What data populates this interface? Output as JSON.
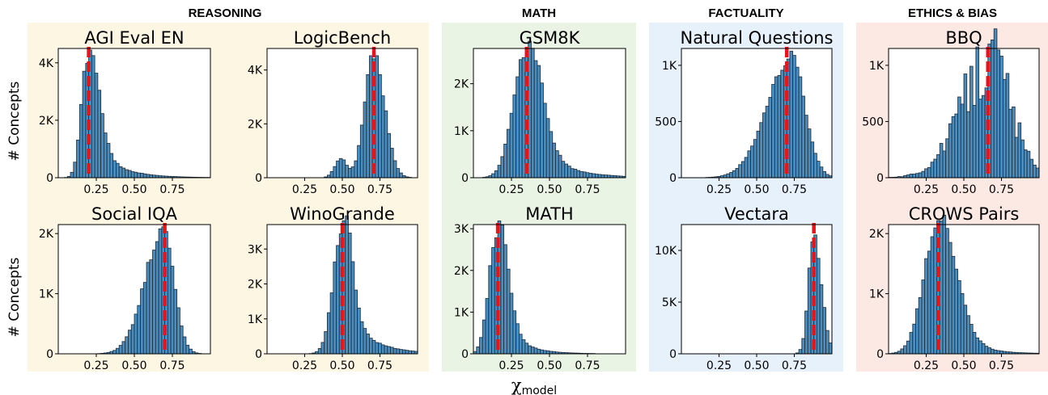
{
  "groups": [
    {
      "key": "reasoning",
      "title": "REASONING",
      "color": "#fdf6e3"
    },
    {
      "key": "math",
      "title": "MATH",
      "color": "#eaf4e4"
    },
    {
      "key": "factuality",
      "title": "FACTUALITY",
      "color": "#e6f1fb"
    },
    {
      "key": "ethics",
      "title": "ETHICS & BIAS",
      "color": "#fde9e4"
    }
  ],
  "ylabel": "# Concepts",
  "xlabel": {
    "symbol": "χ",
    "sub": "model"
  },
  "colors": {
    "bar": "#4a8dbf",
    "bar_edge": "#1b2a38",
    "mean_line": "#e8141a"
  },
  "chart_data": [
    {
      "type": "bar",
      "id": "agi",
      "group": "reasoning",
      "title": "AGI Eval EN",
      "xlim": [
        0,
        1
      ],
      "ylim": [
        0,
        4500
      ],
      "yticks": [
        0,
        2000,
        4000
      ],
      "yticklabels": [
        "0",
        "2K",
        "4K"
      ],
      "xticks": [
        0.25,
        0.5,
        0.75
      ],
      "xticklabels": [
        "0.25",
        "0.50",
        "0.75"
      ],
      "mean": 0.2,
      "dist": {
        "peak": 0.19,
        "left": 0.04,
        "right": 0.07,
        "max": 4100,
        "tail": 0.05,
        "tailscale": 0.35
      }
    },
    {
      "type": "bar",
      "id": "logic",
      "group": "reasoning",
      "title": "LogicBench",
      "xlim": [
        0,
        1
      ],
      "ylim": [
        0,
        4800
      ],
      "yticks": [
        0,
        2000,
        4000
      ],
      "yticklabels": [
        "0",
        "2K",
        "4K"
      ],
      "xticks": [
        0.25,
        0.5,
        0.75
      ],
      "xticklabels": [
        "0.25",
        "0.50",
        "0.75"
      ],
      "mean": 0.71,
      "dist": {
        "peak": 0.71,
        "left": 0.06,
        "right": 0.07,
        "max": 4600,
        "bumps": [
          [
            0.49,
            0.04,
            700
          ]
        ]
      }
    },
    {
      "type": "bar",
      "id": "socialiqa",
      "group": "reasoning",
      "title": "Social IQA",
      "xlim": [
        0,
        1
      ],
      "ylim": [
        0,
        2150
      ],
      "yticks": [
        0,
        1000,
        2000
      ],
      "yticklabels": [
        "0",
        "1K",
        "2K"
      ],
      "xticks": [
        0.25,
        0.5,
        0.75
      ],
      "xticklabels": [
        "0.25",
        "0.50",
        "0.75"
      ],
      "mean": 0.7,
      "dist": {
        "peak": 0.69,
        "left": 0.12,
        "right": 0.07,
        "max": 2050
      }
    },
    {
      "type": "bar",
      "id": "winogrande",
      "group": "reasoning",
      "title": "WinoGrande",
      "xlim": [
        0,
        1
      ],
      "ylim": [
        0,
        3700
      ],
      "yticks": [
        0,
        1000,
        2000,
        3000
      ],
      "yticklabels": [
        "0",
        "1K",
        "2K",
        "3K"
      ],
      "xticks": [
        0.25,
        0.5,
        0.75
      ],
      "xticklabels": [
        "0.25",
        "0.50",
        "0.75"
      ],
      "mean": 0.5,
      "dist": {
        "peak": 0.5,
        "left": 0.06,
        "right": 0.06,
        "max": 3550,
        "tail": 0.05,
        "tailscale": 0.4
      }
    },
    {
      "type": "bar",
      "id": "gsm8k",
      "group": "math",
      "title": "GSM8K",
      "xlim": [
        0,
        1
      ],
      "ylim": [
        0,
        2750
      ],
      "yticks": [
        0,
        1000,
        2000
      ],
      "yticklabels": [
        "0",
        "1K",
        "2K"
      ],
      "xticks": [
        0.25,
        0.5,
        0.75
      ],
      "xticklabels": [
        "0.25",
        "0.50",
        "0.75"
      ],
      "mean": 0.35,
      "dist": {
        "peak": 0.34,
        "left": 0.08,
        "right": 0.1,
        "max": 2600,
        "tail": 0.06,
        "tailscale": 0.35
      }
    },
    {
      "type": "bar",
      "id": "math",
      "group": "math",
      "title": "MATH",
      "xlim": [
        0,
        1
      ],
      "ylim": [
        0,
        3100
      ],
      "yticks": [
        0,
        1000,
        2000,
        3000
      ],
      "yticklabels": [
        "0",
        "1K",
        "2K",
        "3K"
      ],
      "xticks": [
        0.25,
        0.5,
        0.75
      ],
      "xticklabels": [
        "0.25",
        "0.50",
        "0.75"
      ],
      "mean": 0.16,
      "dist": {
        "peak": 0.15,
        "left": 0.05,
        "right": 0.07,
        "max": 2850,
        "tail": 0.04,
        "tailscale": 0.35
      }
    },
    {
      "type": "bar",
      "id": "nq",
      "group": "factuality",
      "title": "Natural Questions",
      "xlim": [
        0,
        1
      ],
      "ylim": [
        0,
        1150
      ],
      "yticks": [
        0,
        500,
        1000
      ],
      "yticklabels": [
        "0",
        "500",
        "1K"
      ],
      "xticks": [
        0.25,
        0.5,
        0.75
      ],
      "xticklabels": [
        "0.25",
        "0.50",
        "0.75"
      ],
      "mean": 0.7,
      "dist": {
        "peak": 0.73,
        "left": 0.16,
        "right": 0.09,
        "max": 1080
      }
    },
    {
      "type": "bar",
      "id": "vectara",
      "group": "factuality",
      "title": "Vectara",
      "xlim": [
        0,
        1
      ],
      "ylim": [
        0,
        12500
      ],
      "yticks": [
        0,
        5000,
        10000
      ],
      "yticklabels": [
        "0",
        "5K",
        "10K"
      ],
      "xticks": [
        0.25,
        0.5,
        0.75
      ],
      "xticklabels": [
        "0.25",
        "0.50",
        "0.75"
      ],
      "mean": 0.88,
      "dist": {
        "peak": 0.88,
        "left": 0.035,
        "right": 0.05,
        "max": 11500
      }
    },
    {
      "type": "bar",
      "id": "bbq",
      "group": "ethics",
      "title": "BBQ",
      "xlim": [
        0,
        1
      ],
      "ylim": [
        0,
        1150
      ],
      "yticks": [
        0,
        500,
        1000
      ],
      "yticklabels": [
        "0",
        "500",
        "1K"
      ],
      "xticks": [
        0.25,
        0.5,
        0.75
      ],
      "xticklabels": [
        "0.25",
        "0.50",
        "0.75"
      ],
      "mean": 0.66,
      "dist": {
        "peak": 0.69,
        "left": 0.2,
        "right": 0.13,
        "max": 1030,
        "noise": 0.28,
        "bumps": [
          [
            0.5,
            0.015,
            350
          ],
          [
            0.72,
            0.015,
            120
          ]
        ]
      }
    },
    {
      "type": "bar",
      "id": "crows",
      "group": "ethics",
      "title": "CROWS Pairs",
      "xlim": [
        0,
        1
      ],
      "ylim": [
        0,
        2150
      ],
      "yticks": [
        0,
        1000,
        2000
      ],
      "yticklabels": [
        "0",
        "1K",
        "2K"
      ],
      "xticks": [
        0.25,
        0.5,
        0.75
      ],
      "xticklabels": [
        "0.25",
        "0.50",
        "0.75"
      ],
      "mean": 0.33,
      "dist": {
        "peak": 0.32,
        "left": 0.09,
        "right": 0.12,
        "max": 2050,
        "tail": 0.05,
        "tailscale": 0.3
      }
    }
  ]
}
